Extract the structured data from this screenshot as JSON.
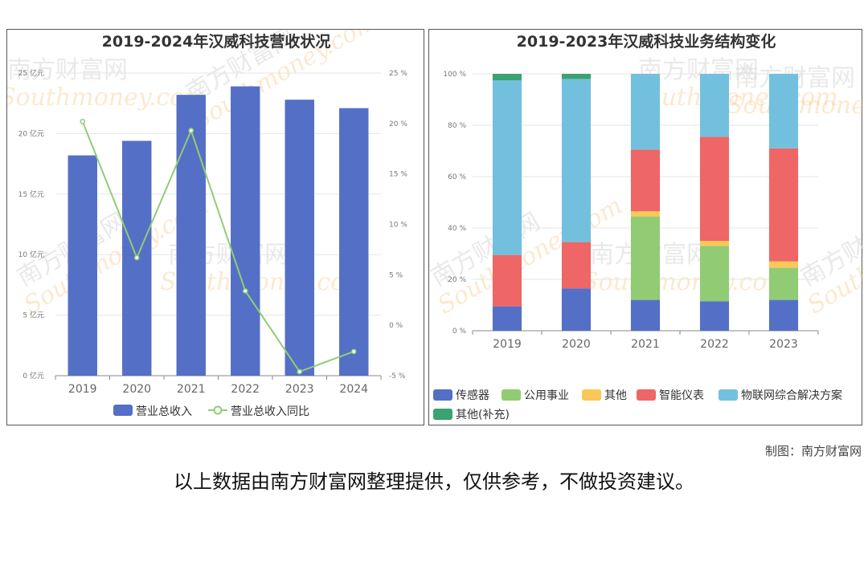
{
  "chart_data": [
    {
      "type": "bar",
      "title": "2019-2024年汉威科技营收状况",
      "categories": [
        "2019",
        "2020",
        "2021",
        "2022",
        "2023",
        "2024"
      ],
      "y_left": {
        "ticks": [
          "0 亿元",
          "5 亿元",
          "10 亿元",
          "15 亿元",
          "20 亿元",
          "25 亿元"
        ],
        "range": [
          0,
          25
        ]
      },
      "y_right": {
        "ticks": [
          "-5 %",
          "0 %",
          "5 %",
          "10 %",
          "15 %",
          "20 %",
          "25 %"
        ],
        "range": [
          -5,
          25
        ]
      },
      "series": [
        {
          "name": "营业总收入",
          "type": "bar",
          "axis": "left",
          "color": "#5470c6",
          "values": [
            18.2,
            19.4,
            23.2,
            23.9,
            22.8,
            22.1
          ]
        },
        {
          "name": "营业总收入同比",
          "type": "line",
          "axis": "right",
          "color": "#91cc75",
          "values": [
            20.2,
            6.7,
            19.3,
            3.4,
            -4.6,
            -2.6
          ]
        }
      ],
      "grid": true,
      "legend": "bottom"
    },
    {
      "type": "bar",
      "stacked": true,
      "title": "2019-2023年汉威科技业务结构变化",
      "categories": [
        "2019",
        "2020",
        "2021",
        "2022",
        "2023"
      ],
      "y_ticks": [
        "0 %",
        "20 %",
        "40 %",
        "60 %",
        "80 %",
        "100 %"
      ],
      "ylim": [
        0,
        100
      ],
      "series": [
        {
          "name": "传感器",
          "color": "#5470c6",
          "values": [
            9.5,
            16.5,
            12,
            11.5,
            12
          ]
        },
        {
          "name": "公用事业",
          "color": "#91cc75",
          "values": [
            0,
            0,
            32.5,
            21.5,
            12.5
          ]
        },
        {
          "name": "其他",
          "color": "#fac858",
          "values": [
            0,
            0,
            2,
            2,
            2.5
          ]
        },
        {
          "name": "智能仪表",
          "color": "#ee6666",
          "values": [
            20,
            18,
            24,
            40.5,
            44
          ]
        },
        {
          "name": "物联网综合解决方案",
          "color": "#73c0de",
          "values": [
            68,
            63.5,
            29.5,
            24.5,
            29
          ]
        },
        {
          "name": "其他(补充)",
          "color": "#3ba272",
          "values": [
            2.5,
            2,
            0,
            0,
            0
          ]
        }
      ],
      "grid": true,
      "legend": "bottom"
    }
  ],
  "watermark": {
    "cn": "南方财富网",
    "en": "Southmoney.com"
  },
  "credit": "制图：南方财富网",
  "disclaimer": "以上数据由南方财富网整理提供，仅供参考，不做投资建议。"
}
